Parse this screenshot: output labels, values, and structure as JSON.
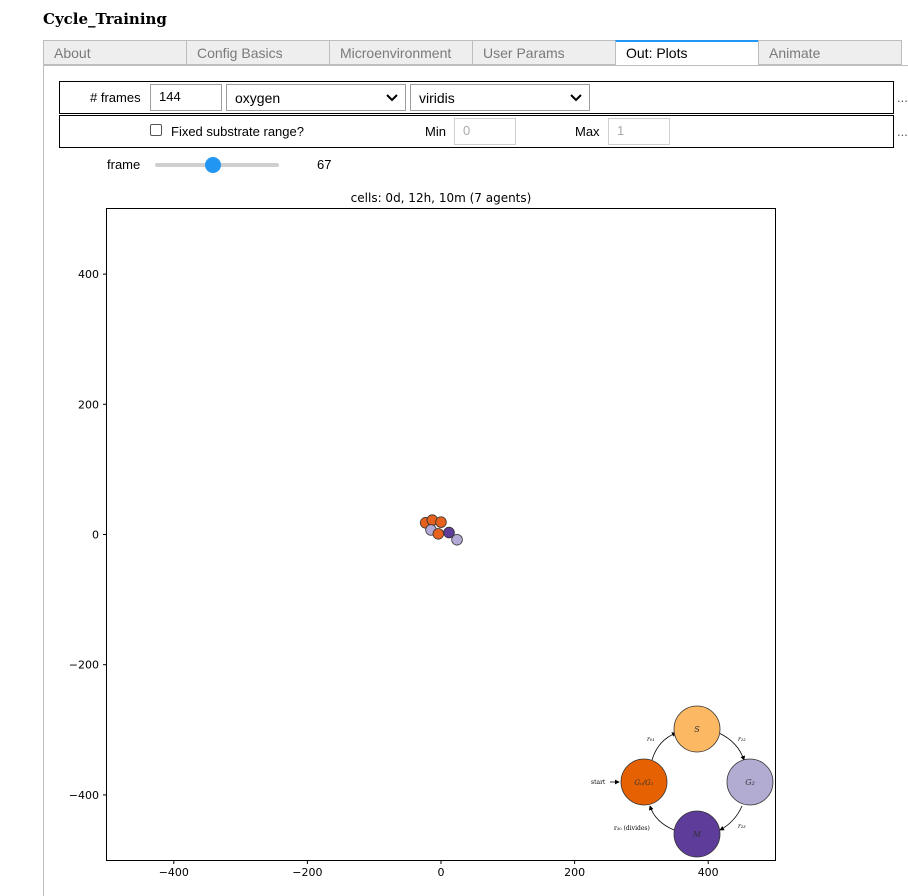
{
  "app": {
    "title": "Cycle_Training"
  },
  "tabs": [
    {
      "label": "About",
      "active": false
    },
    {
      "label": "Config Basics",
      "active": false
    },
    {
      "label": "Microenvironment",
      "active": false
    },
    {
      "label": "User Params",
      "active": false
    },
    {
      "label": "Out: Plots",
      "active": true
    },
    {
      "label": "Animate",
      "active": false
    }
  ],
  "controls": {
    "frames_label": "# frames",
    "frames_value": "144",
    "substrate_select": "oxygen",
    "colormap_select": "viridis",
    "fixed_range_label": "Fixed substrate range?",
    "fixed_range_checked": false,
    "min_label": "Min",
    "min_value": "0",
    "max_label": "Max",
    "max_value": "1",
    "frame_label": "frame",
    "frame_value": "67",
    "frame_slider": {
      "min": 0,
      "max": 144,
      "value": 67
    },
    "ellipsis": "..."
  },
  "chart_data": {
    "type": "scatter",
    "title": "cells: 0d, 12h, 10m (7 agents)",
    "xlim": [
      -500,
      500
    ],
    "ylim": [
      -500,
      500
    ],
    "xticks": [
      -400,
      -200,
      0,
      200,
      400
    ],
    "yticks": [
      400,
      200,
      0,
      -200,
      -400
    ],
    "xtick_labels": [
      "−400",
      "−200",
      "0",
      "200",
      "400"
    ],
    "ytick_labels": [
      "400",
      "200",
      "0",
      "−200",
      "−400"
    ],
    "grid": false,
    "cells": [
      {
        "x": -23,
        "y": 18,
        "r": 8,
        "color": "#e6611d"
      },
      {
        "x": -13,
        "y": 22,
        "r": 8,
        "color": "#e6611d"
      },
      {
        "x": 0,
        "y": 19,
        "r": 8,
        "color": "#e6611d"
      },
      {
        "x": -15,
        "y": 7,
        "r": 8,
        "color": "#b3aad6"
      },
      {
        "x": -4,
        "y": 1,
        "r": 8,
        "color": "#e6611d"
      },
      {
        "x": 12,
        "y": 3,
        "r": 8,
        "color": "#5e3c99"
      },
      {
        "x": 24,
        "y": -8,
        "r": 8,
        "color": "#b3aad6"
      }
    ]
  },
  "legend": {
    "nodes": [
      {
        "label": "S",
        "color": "#fdb863"
      },
      {
        "label": "G₂",
        "color": "#b2abd2"
      },
      {
        "label": "M",
        "color": "#5e3c99"
      },
      {
        "label": "G₀/G₁",
        "color": "#e66101"
      }
    ],
    "rates": {
      "r01": "r₀₁",
      "r12": "r₁₂",
      "r23": "r₂₃",
      "r30": "r₃₀ (divides)"
    },
    "start_label": "start"
  }
}
